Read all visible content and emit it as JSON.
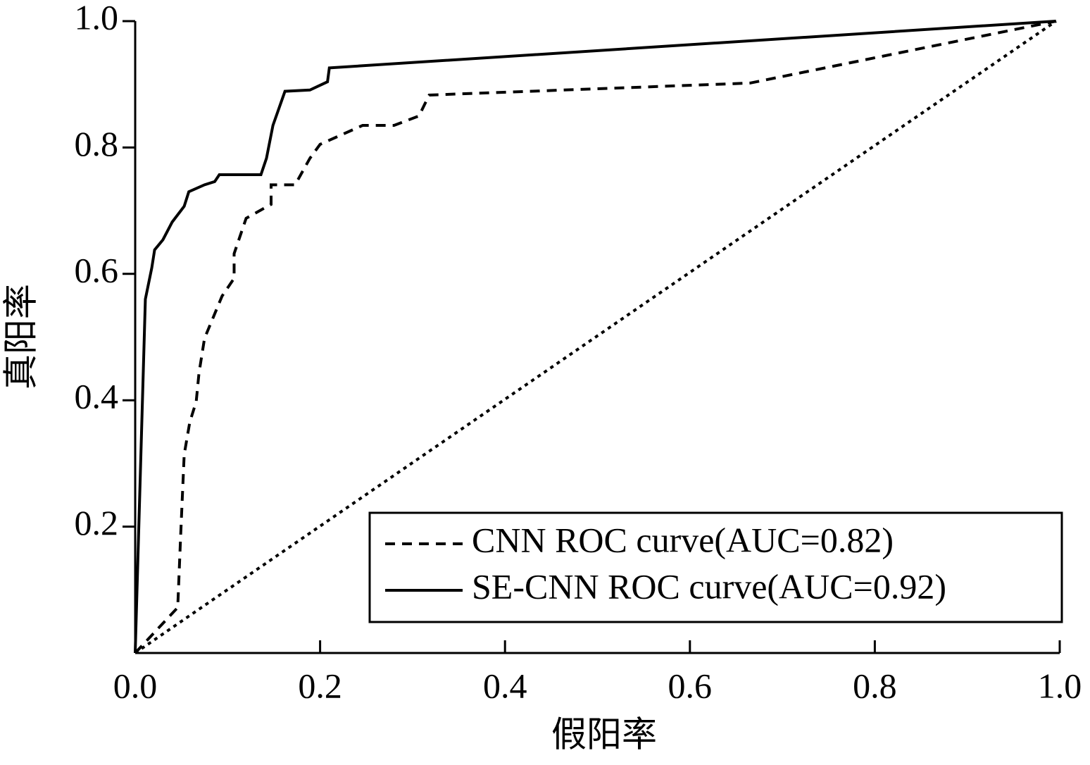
{
  "chart_data": {
    "type": "line",
    "xlabel": "假阳率",
    "ylabel": "真阳率",
    "xlim": [
      0,
      1
    ],
    "ylim": [
      0,
      1
    ],
    "xticks": [
      {
        "value": 0,
        "label": "0.0"
      },
      0.2,
      0.4,
      0.6,
      0.8,
      {
        "value": 1,
        "label": "1.0"
      }
    ],
    "yticks": [
      0.2,
      0.4,
      0.6,
      0.8,
      {
        "value": 1,
        "label": "1.0"
      }
    ],
    "grid": false,
    "legend": "lower right",
    "series": [
      {
        "name": "CNN ROC curve(AUC=0.82)",
        "color": "#000000",
        "linestyle": "dashed",
        "x": [
          0,
          0.046,
          0.049,
          0.053,
          0.059,
          0.066,
          0.069,
          0.075,
          0.094,
          0.107,
          0.107,
          0.12,
          0.147,
          0.147,
          0.173,
          0.189,
          0.2,
          0.246,
          0.28,
          0.307,
          0.318,
          0.665,
          0.996
        ],
        "values": [
          0,
          0.072,
          0.18,
          0.314,
          0.365,
          0.398,
          0.443,
          0.498,
          0.565,
          0.593,
          0.632,
          0.688,
          0.71,
          0.741,
          0.741,
          0.783,
          0.805,
          0.835,
          0.835,
          0.85,
          0.883,
          0.902,
          1.0
        ]
      },
      {
        "name": "SE-CNN ROC curve(AUC=0.92)",
        "color": "#000000",
        "linestyle": "solid",
        "x": [
          0,
          0.011,
          0.018,
          0.021,
          0.03,
          0.04,
          0.053,
          0.058,
          0.075,
          0.086,
          0.091,
          0.136,
          0.142,
          0.149,
          0.162,
          0.189,
          0.208,
          0.21,
          0.996
        ],
        "values": [
          0,
          0.56,
          0.61,
          0.638,
          0.654,
          0.682,
          0.707,
          0.73,
          0.741,
          0.746,
          0.757,
          0.757,
          0.783,
          0.835,
          0.889,
          0.891,
          0.904,
          0.926,
          1.0
        ]
      },
      {
        "color": "#000000",
        "linestyle": "dotted",
        "x": [
          0,
          0.996
        ],
        "values": [
          0,
          1.0
        ]
      }
    ]
  }
}
